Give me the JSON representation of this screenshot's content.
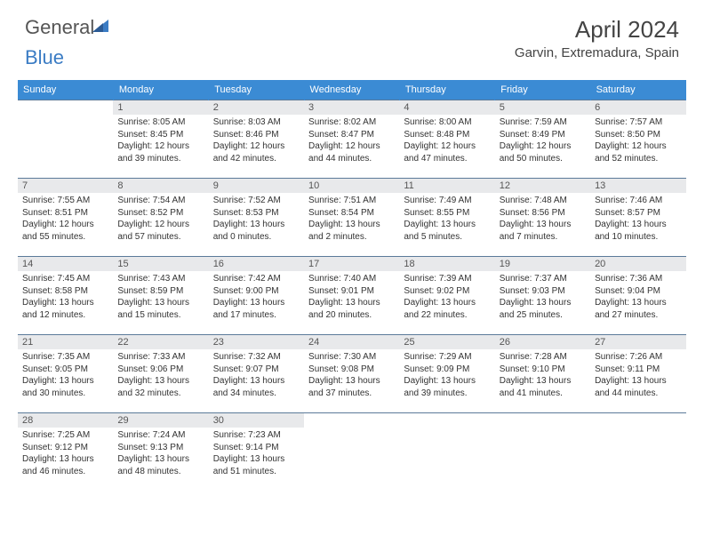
{
  "logo": {
    "word1": "General",
    "word2": "Blue"
  },
  "title": {
    "month_year": "April 2024",
    "location": "Garvin, Extremadura, Spain"
  },
  "colors": {
    "header_bg": "#3b8bd4",
    "header_text": "#ffffff",
    "daynum_bg": "#e8e9eb",
    "row_border": "#5b7a99",
    "logo_blue": "#3b7cc4",
    "body_text": "#333333"
  },
  "weekdays": [
    "Sunday",
    "Monday",
    "Tuesday",
    "Wednesday",
    "Thursday",
    "Friday",
    "Saturday"
  ],
  "weeks": [
    [
      null,
      {
        "n": "1",
        "sr": "8:05 AM",
        "ss": "8:45 PM",
        "dl": "12 hours and 39 minutes."
      },
      {
        "n": "2",
        "sr": "8:03 AM",
        "ss": "8:46 PM",
        "dl": "12 hours and 42 minutes."
      },
      {
        "n": "3",
        "sr": "8:02 AM",
        "ss": "8:47 PM",
        "dl": "12 hours and 44 minutes."
      },
      {
        "n": "4",
        "sr": "8:00 AM",
        "ss": "8:48 PM",
        "dl": "12 hours and 47 minutes."
      },
      {
        "n": "5",
        "sr": "7:59 AM",
        "ss": "8:49 PM",
        "dl": "12 hours and 50 minutes."
      },
      {
        "n": "6",
        "sr": "7:57 AM",
        "ss": "8:50 PM",
        "dl": "12 hours and 52 minutes."
      }
    ],
    [
      {
        "n": "7",
        "sr": "7:55 AM",
        "ss": "8:51 PM",
        "dl": "12 hours and 55 minutes."
      },
      {
        "n": "8",
        "sr": "7:54 AM",
        "ss": "8:52 PM",
        "dl": "12 hours and 57 minutes."
      },
      {
        "n": "9",
        "sr": "7:52 AM",
        "ss": "8:53 PM",
        "dl": "13 hours and 0 minutes."
      },
      {
        "n": "10",
        "sr": "7:51 AM",
        "ss": "8:54 PM",
        "dl": "13 hours and 2 minutes."
      },
      {
        "n": "11",
        "sr": "7:49 AM",
        "ss": "8:55 PM",
        "dl": "13 hours and 5 minutes."
      },
      {
        "n": "12",
        "sr": "7:48 AM",
        "ss": "8:56 PM",
        "dl": "13 hours and 7 minutes."
      },
      {
        "n": "13",
        "sr": "7:46 AM",
        "ss": "8:57 PM",
        "dl": "13 hours and 10 minutes."
      }
    ],
    [
      {
        "n": "14",
        "sr": "7:45 AM",
        "ss": "8:58 PM",
        "dl": "13 hours and 12 minutes."
      },
      {
        "n": "15",
        "sr": "7:43 AM",
        "ss": "8:59 PM",
        "dl": "13 hours and 15 minutes."
      },
      {
        "n": "16",
        "sr": "7:42 AM",
        "ss": "9:00 PM",
        "dl": "13 hours and 17 minutes."
      },
      {
        "n": "17",
        "sr": "7:40 AM",
        "ss": "9:01 PM",
        "dl": "13 hours and 20 minutes."
      },
      {
        "n": "18",
        "sr": "7:39 AM",
        "ss": "9:02 PM",
        "dl": "13 hours and 22 minutes."
      },
      {
        "n": "19",
        "sr": "7:37 AM",
        "ss": "9:03 PM",
        "dl": "13 hours and 25 minutes."
      },
      {
        "n": "20",
        "sr": "7:36 AM",
        "ss": "9:04 PM",
        "dl": "13 hours and 27 minutes."
      }
    ],
    [
      {
        "n": "21",
        "sr": "7:35 AM",
        "ss": "9:05 PM",
        "dl": "13 hours and 30 minutes."
      },
      {
        "n": "22",
        "sr": "7:33 AM",
        "ss": "9:06 PM",
        "dl": "13 hours and 32 minutes."
      },
      {
        "n": "23",
        "sr": "7:32 AM",
        "ss": "9:07 PM",
        "dl": "13 hours and 34 minutes."
      },
      {
        "n": "24",
        "sr": "7:30 AM",
        "ss": "9:08 PM",
        "dl": "13 hours and 37 minutes."
      },
      {
        "n": "25",
        "sr": "7:29 AM",
        "ss": "9:09 PM",
        "dl": "13 hours and 39 minutes."
      },
      {
        "n": "26",
        "sr": "7:28 AM",
        "ss": "9:10 PM",
        "dl": "13 hours and 41 minutes."
      },
      {
        "n": "27",
        "sr": "7:26 AM",
        "ss": "9:11 PM",
        "dl": "13 hours and 44 minutes."
      }
    ],
    [
      {
        "n": "28",
        "sr": "7:25 AM",
        "ss": "9:12 PM",
        "dl": "13 hours and 46 minutes."
      },
      {
        "n": "29",
        "sr": "7:24 AM",
        "ss": "9:13 PM",
        "dl": "13 hours and 48 minutes."
      },
      {
        "n": "30",
        "sr": "7:23 AM",
        "ss": "9:14 PM",
        "dl": "13 hours and 51 minutes."
      },
      null,
      null,
      null,
      null
    ]
  ],
  "labels": {
    "sunrise": "Sunrise: ",
    "sunset": "Sunset: ",
    "daylight": "Daylight: "
  }
}
